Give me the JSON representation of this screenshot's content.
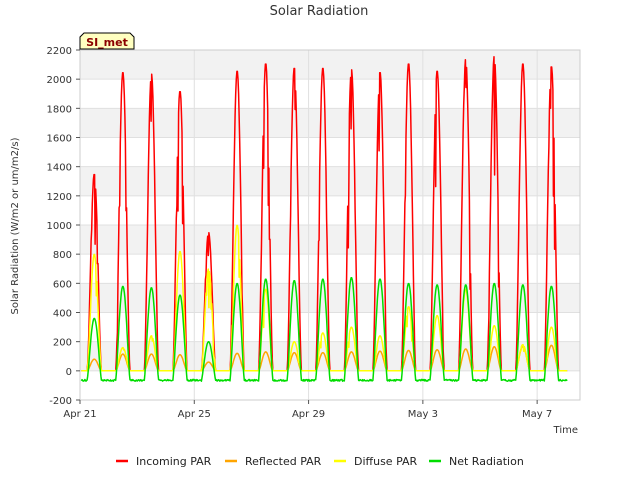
{
  "chart_data": {
    "type": "line",
    "title": "Solar Radiation",
    "xlabel": "Time",
    "ylabel": "Solar Radiation (W/m2 or um/m2/s)",
    "station_label": "SI_met",
    "x_units": "days since Apr 21",
    "xlim": [
      0,
      17.5
    ],
    "ylim": [
      -200,
      2200
    ],
    "yticks": [
      -200,
      0,
      200,
      400,
      600,
      800,
      1000,
      1200,
      1400,
      1600,
      1800,
      2000,
      2200
    ],
    "xticks": [
      {
        "label": "Apr 21",
        "day": 0
      },
      {
        "label": "Apr 25",
        "day": 4
      },
      {
        "label": "Apr 29",
        "day": 8
      },
      {
        "label": "May 3",
        "day": 12
      },
      {
        "label": "May 7",
        "day": 16
      }
    ],
    "grid": true,
    "background_bands": true,
    "legend_position": "bottom",
    "day_numbers": [
      0,
      1,
      2,
      3,
      4,
      5,
      6,
      7,
      8,
      9,
      10,
      11,
      12,
      13,
      14,
      15,
      16
    ],
    "series": [
      {
        "name": "Incoming PAR",
        "color": "#ff0000",
        "daily_peaks": [
          1350,
          2050,
          2040,
          1920,
          950,
          2060,
          2110,
          2080,
          2080,
          2070,
          2050,
          2110,
          2060,
          2140,
          2160,
          2110,
          2090
        ]
      },
      {
        "name": "Reflected PAR",
        "color": "#ffa500",
        "daily_peaks": [
          80,
          115,
          115,
          110,
          60,
          120,
          130,
          125,
          125,
          130,
          135,
          140,
          145,
          150,
          165,
          170,
          175
        ]
      },
      {
        "name": "Diffuse PAR",
        "color": "#ffff00",
        "daily_peaks": [
          800,
          160,
          240,
          820,
          700,
          1000,
          560,
          200,
          260,
          300,
          240,
          440,
          380,
          560,
          310,
          180,
          300
        ]
      },
      {
        "name": "Net Radiation",
        "color": "#00dd00",
        "daily_peaks": [
          360,
          580,
          570,
          520,
          200,
          600,
          630,
          620,
          630,
          640,
          630,
          600,
          590,
          590,
          600,
          590,
          580
        ],
        "night_value": -65
      }
    ]
  }
}
